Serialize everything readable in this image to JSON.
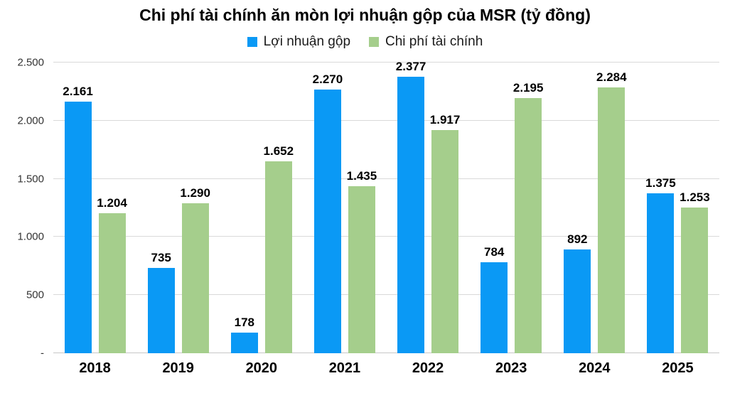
{
  "chart_data": {
    "type": "bar",
    "title": "Chi phí tài chính ăn mòn lợi nhuận gộp của MSR (tỷ đồng)",
    "xlabel": "",
    "ylabel": "",
    "categories": [
      "2018",
      "2019",
      "2020",
      "2021",
      "2022",
      "2023",
      "2024",
      "2025"
    ],
    "series": [
      {
        "key": "loi-nhuan-gop",
        "name": "Lợi nhuận gộp",
        "color": "#0a99f5",
        "values": [
          2161,
          735,
          178,
          2270,
          2377,
          784,
          892,
          1375
        ],
        "labels": [
          "2.161",
          "735",
          "178",
          "2.270",
          "2.377",
          "784",
          "892",
          "1.375"
        ]
      },
      {
        "key": "chi-phi-tai-chinh",
        "name": "Chi phí tài chính",
        "color": "#a5ce8c",
        "values": [
          1204,
          1290,
          1652,
          1435,
          1917,
          2195,
          2284,
          1253
        ],
        "labels": [
          "1.204",
          "1.290",
          "1.652",
          "1.435",
          "1.917",
          "2.195",
          "2.284",
          "1.253"
        ]
      }
    ],
    "ylim": [
      0,
      2500
    ],
    "yticks": [
      {
        "value": 2500,
        "label": "2.500"
      },
      {
        "value": 2000,
        "label": "2.000"
      },
      {
        "value": 1500,
        "label": "1.500"
      },
      {
        "value": 1000,
        "label": "1.000"
      },
      {
        "value": 500,
        "label": "500"
      },
      {
        "value": 0,
        "label": "-"
      }
    ],
    "grid": "horizontal",
    "legend_position": "top",
    "colors": {
      "gridline": "#d9d9d9",
      "baseline": "#c6c6c6",
      "value_label": "#000000",
      "axis_label": "#333333"
    }
  }
}
